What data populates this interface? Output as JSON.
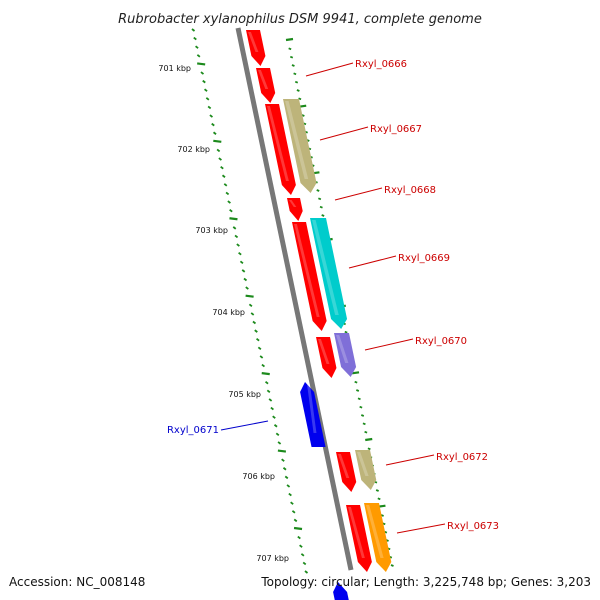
{
  "title": "Rubrobacter xylanophilus DSM 9941, complete genome",
  "footer": {
    "accession": "Accession: NC_008148",
    "summary": "Topology: circular; Length: 3,225,748 bp; Genes: 3,203"
  },
  "colors": {
    "backbone": "#777777",
    "scale_tick": "#1c8a1c",
    "forward_label": "#cc0000",
    "reverse_label": "#0000cc",
    "red": "#ff0000",
    "khaki": "#bdb47a",
    "cyan": "#00cccc",
    "purple": "#7f6fd8",
    "blue": "#0000ee",
    "orange": "#ff9a00"
  },
  "scale_labels": [
    "701 kbp",
    "702 kbp",
    "703 kbp",
    "704 kbp",
    "705 kbp",
    "706 kbp",
    "707 kbp"
  ],
  "gene_labels": [
    {
      "text": "Rxyl_0666",
      "strand": "forward"
    },
    {
      "text": "Rxyl_0667",
      "strand": "forward"
    },
    {
      "text": "Rxyl_0668",
      "strand": "forward"
    },
    {
      "text": "Rxyl_0669",
      "strand": "forward"
    },
    {
      "text": "Rxyl_0670",
      "strand": "forward"
    },
    {
      "text": "Rxyl_0671",
      "strand": "reverse"
    },
    {
      "text": "Rxyl_0672",
      "strand": "forward"
    },
    {
      "text": "Rxyl_0673",
      "strand": "forward"
    }
  ]
}
